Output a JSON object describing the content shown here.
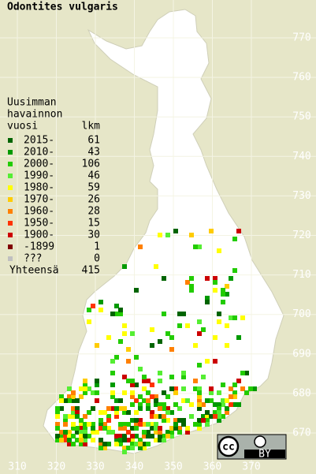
{
  "title": "Odontites vulgaris",
  "legend": {
    "heading": [
      "Uusimman",
      "havainnon",
      "vuosi"
    ],
    "count_heading": "lkm",
    "items": [
      {
        "label": "2015-",
        "count": 61,
        "color": "#006400"
      },
      {
        "label": "2010-",
        "count": 43,
        "color": "#009a00"
      },
      {
        "label": "2000-",
        "count": 106,
        "color": "#22cc00"
      },
      {
        "label": "1990-",
        "count": 46,
        "color": "#55ee33"
      },
      {
        "label": "1980-",
        "count": 59,
        "color": "#ffff00"
      },
      {
        "label": "1970-",
        "count": 26,
        "color": "#ffcc00"
      },
      {
        "label": "1960-",
        "count": 28,
        "color": "#ff8000"
      },
      {
        "label": "1950-",
        "count": 15,
        "color": "#ff3300"
      },
      {
        "label": "1900-",
        "count": 30,
        "color": "#cc0000"
      },
      {
        "label": "-1899",
        "count": 1,
        "color": "#800000"
      },
      {
        "label": "???",
        "count": 0,
        "color": "#c0c0c0"
      }
    ],
    "total_label": "Yhteensä",
    "total": 415
  },
  "grid": {
    "x_labels": [
      310,
      320,
      330,
      340,
      350,
      360,
      370
    ],
    "y_labels": [
      770,
      760,
      750,
      740,
      730,
      720,
      710,
      700,
      690,
      680,
      670
    ]
  },
  "license": {
    "cc": "cc",
    "by": "BY"
  }
}
